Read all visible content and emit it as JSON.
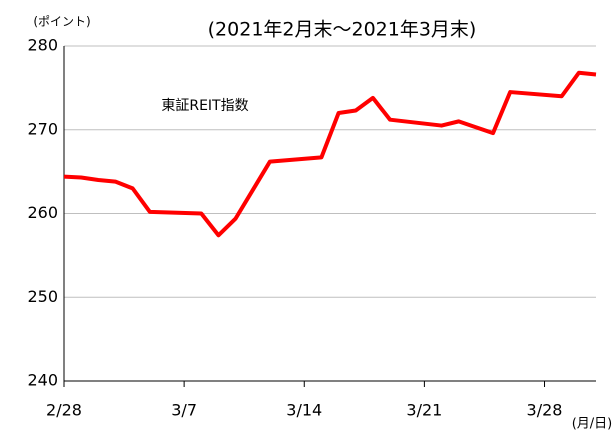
{
  "chart_data": {
    "type": "line",
    "title": "(2021年2月末～2021年3月末)",
    "y_label": "(ポイント)",
    "x_label": "(月/日)",
    "x": [
      0,
      1,
      2,
      3,
      4,
      5,
      8,
      9,
      10,
      11,
      12,
      15,
      16,
      17,
      18,
      19,
      22,
      23,
      24,
      25,
      26,
      29,
      30,
      31
    ],
    "series": [
      {
        "name": "東証REIT指数",
        "color": "#ff0000",
        "values": [
          264.4,
          264.3,
          264.0,
          263.8,
          263.0,
          260.2,
          260.0,
          257.4,
          259.4,
          262.8,
          266.2,
          266.7,
          272.0,
          272.3,
          273.8,
          271.2,
          270.5,
          271.0,
          270.3,
          269.6,
          274.5,
          274.0,
          276.8,
          276.6
        ]
      }
    ],
    "xlim": [
      0,
      31
    ],
    "xticks": [
      {
        "value": 0,
        "label": "2/28"
      },
      {
        "value": 7,
        "label": "3/7"
      },
      {
        "value": 14,
        "label": "3/14"
      },
      {
        "value": 21,
        "label": "3/21"
      },
      {
        "value": 28,
        "label": "3/28"
      }
    ],
    "ylim": [
      240,
      280
    ],
    "yticks": [
      240,
      250,
      260,
      270,
      280
    ],
    "grid": true
  }
}
